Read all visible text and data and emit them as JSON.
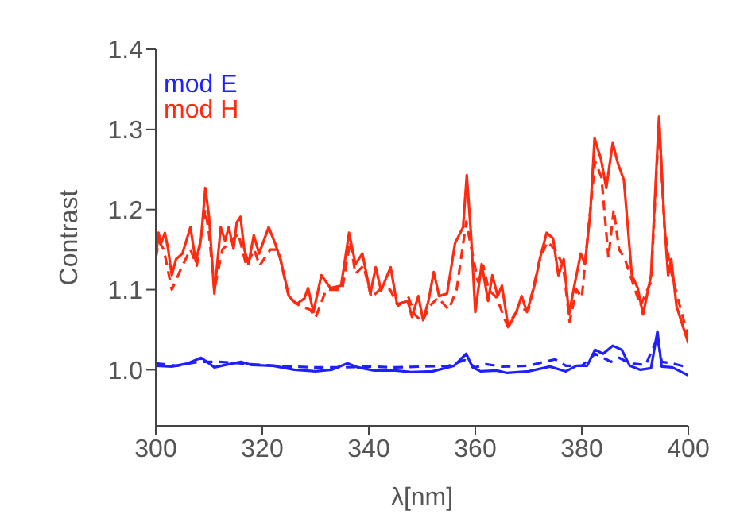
{
  "chart_data": {
    "type": "line",
    "xlabel": "λ[nm]",
    "ylabel": "Contrast",
    "xlim": [
      300,
      400
    ],
    "xticks": [
      300,
      320,
      340,
      360,
      380,
      400
    ],
    "ylim": [
      0.93,
      1.4
    ],
    "yticks": [
      {
        "value": 1.0,
        "label": "1.0"
      },
      {
        "value": 1.1,
        "label": "1.1"
      },
      {
        "value": 1.2,
        "label": "1.2"
      },
      {
        "value": 1.3,
        "label": "1.3"
      },
      {
        "value": 1.4,
        "label": "1.4"
      }
    ],
    "legend": "top left",
    "grid": false,
    "marker": "none",
    "series": [
      {
        "name": "mod E",
        "color": "#2020ff",
        "line_style": "solid",
        "x": [
          300,
          303,
          306,
          308.5,
          310,
          311,
          313,
          316,
          318,
          322,
          326,
          330,
          333,
          336,
          338,
          341,
          345,
          348,
          352,
          356,
          358.3,
          359.5,
          361,
          364,
          366,
          370,
          374,
          377,
          379,
          381,
          382.5,
          384,
          385.8,
          387.5,
          389,
          391,
          393,
          394.2,
          395,
          397,
          400
        ],
        "values": [
          1.005,
          1.004,
          1.008,
          1.015,
          1.008,
          1.003,
          1.006,
          1.01,
          1.006,
          1.005,
          1.0,
          0.998,
          1.0,
          1.008,
          1.003,
          0.999,
          0.999,
          0.997,
          0.998,
          1.005,
          1.02,
          1.003,
          0.998,
          0.999,
          0.996,
          0.998,
          1.004,
          0.998,
          1.005,
          1.005,
          1.025,
          1.02,
          1.03,
          1.025,
          1.005,
          1.0,
          1.002,
          1.048,
          1.004,
          1.003,
          0.993
        ]
      },
      {
        "color": "#2020ff",
        "line_style": "dashed",
        "x": [
          300,
          304,
          308,
          312,
          316,
          320,
          325,
          330,
          335,
          340,
          345,
          350,
          355,
          358,
          360,
          362,
          365,
          370,
          373,
          375,
          377,
          380,
          382.5,
          384,
          385.5,
          387,
          389,
          392,
          394.2,
          395,
          397,
          400
        ],
        "values": [
          1.008,
          1.005,
          1.01,
          1.01,
          1.008,
          1.006,
          1.004,
          1.003,
          1.003,
          1.004,
          1.003,
          1.004,
          1.005,
          1.012,
          1.003,
          1.007,
          1.004,
          1.005,
          1.01,
          1.013,
          1.005,
          1.005,
          1.02,
          1.015,
          1.01,
          1.015,
          1.008,
          1.006,
          1.04,
          1.01,
          1.008,
          1.003
        ]
      },
      {
        "name": "mod H",
        "color": "#ff2a10",
        "line_style": "solid",
        "x": [
          300,
          300.5,
          301,
          301.7,
          302.3,
          303,
          303.8,
          305,
          306.5,
          307.5,
          308.5,
          309.3,
          310,
          311,
          312.2,
          313,
          313.7,
          314.6,
          315.2,
          315.9,
          316.6,
          317.4,
          318.4,
          319.4,
          321.2,
          322.4,
          323.4,
          325,
          326.4,
          327.9,
          328.6,
          329.6,
          331.1,
          332.8,
          334.8,
          336.3,
          337.5,
          338.8,
          340.3,
          341.3,
          342.3,
          344.1,
          345.3,
          347.3,
          348.1,
          349.3,
          350.2,
          351.2,
          352.2,
          353.2,
          354.7,
          356.2,
          357.7,
          358.4,
          359.2,
          360,
          361.2,
          362.4,
          363.2,
          364.2,
          365,
          366.2,
          367.7,
          368.7,
          369.7,
          371.1,
          372.1,
          373.4,
          374.6,
          375.6,
          376.6,
          377.6,
          378.6,
          379.8,
          380.6,
          381.6,
          382.4,
          383.6,
          384.6,
          385.8,
          386.8,
          387.9,
          389.4,
          390.5,
          391.5,
          393,
          394.5,
          395.5,
          396.2,
          396.8,
          397.8,
          400
        ],
        "values": [
          1.138,
          1.171,
          1.158,
          1.171,
          1.151,
          1.118,
          1.138,
          1.145,
          1.178,
          1.135,
          1.164,
          1.227,
          1.191,
          1.095,
          1.178,
          1.161,
          1.178,
          1.151,
          1.184,
          1.191,
          1.151,
          1.132,
          1.168,
          1.145,
          1.178,
          1.158,
          1.138,
          1.092,
          1.082,
          1.089,
          1.102,
          1.072,
          1.118,
          1.102,
          1.105,
          1.171,
          1.132,
          1.145,
          1.095,
          1.128,
          1.099,
          1.128,
          1.082,
          1.086,
          1.066,
          1.092,
          1.062,
          1.086,
          1.122,
          1.092,
          1.095,
          1.158,
          1.178,
          1.243,
          1.168,
          1.072,
          1.132,
          1.086,
          1.118,
          1.092,
          1.105,
          1.053,
          1.072,
          1.092,
          1.072,
          1.105,
          1.138,
          1.171,
          1.164,
          1.118,
          1.138,
          1.069,
          1.105,
          1.145,
          1.132,
          1.197,
          1.289,
          1.263,
          1.227,
          1.283,
          1.257,
          1.237,
          1.118,
          1.102,
          1.069,
          1.118,
          1.316,
          1.184,
          1.118,
          1.138,
          1.079,
          1.033
        ]
      },
      {
        "color": "#ff2a10",
        "line_style": "dashed",
        "x": [
          300,
          300.6,
          301.5,
          303,
          305,
          306.5,
          307.7,
          309.3,
          310,
          311,
          312.5,
          314,
          315.5,
          317,
          318.5,
          319.5,
          321.5,
          323,
          325,
          327,
          329,
          330,
          332,
          335,
          336.5,
          337.5,
          339,
          340.5,
          342,
          344,
          345.5,
          347.5,
          348.5,
          350,
          351.5,
          353,
          355,
          356.5,
          358.3,
          359.3,
          360.5,
          361.5,
          362.5,
          364,
          366,
          368,
          370,
          372,
          373.5,
          375,
          376.5,
          377.7,
          379,
          380,
          381,
          382.5,
          383.7,
          385,
          386,
          387,
          388,
          389.5,
          391,
          393,
          394.5,
          395.5,
          396.5,
          398,
          400
        ],
        "values": [
          1.14,
          1.16,
          1.15,
          1.1,
          1.13,
          1.15,
          1.13,
          1.2,
          1.17,
          1.1,
          1.15,
          1.16,
          1.17,
          1.13,
          1.15,
          1.13,
          1.15,
          1.15,
          1.09,
          1.08,
          1.075,
          1.065,
          1.1,
          1.1,
          1.16,
          1.12,
          1.13,
          1.09,
          1.1,
          1.1,
          1.08,
          1.09,
          1.07,
          1.06,
          1.08,
          1.09,
          1.075,
          1.1,
          1.185,
          1.15,
          1.11,
          1.13,
          1.1,
          1.09,
          1.055,
          1.075,
          1.075,
          1.135,
          1.16,
          1.15,
          1.13,
          1.06,
          1.1,
          1.09,
          1.16,
          1.26,
          1.24,
          1.14,
          1.2,
          1.15,
          1.14,
          1.11,
          1.08,
          1.11,
          1.31,
          1.18,
          1.13,
          1.09,
          1.04
        ]
      }
    ]
  }
}
